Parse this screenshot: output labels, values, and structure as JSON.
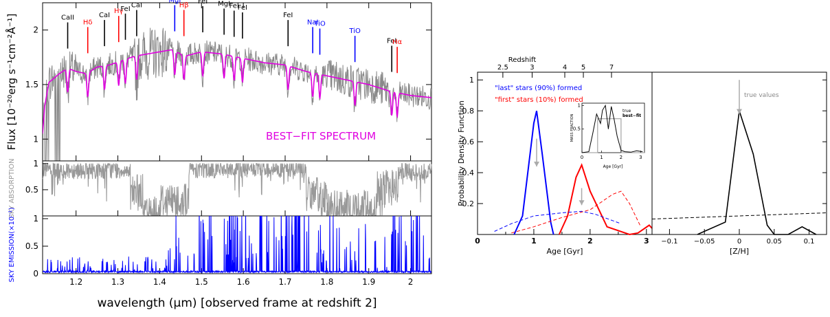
{
  "colors": {
    "spectrum": "#888888",
    "fit": "#e000e0",
    "sky_abs": "#999999",
    "sky_em": "#0000ff",
    "last": "#0000ff",
    "first": "#ff0000",
    "z": "#000000",
    "true_arrow": "#aaaaaa"
  },
  "chart_data": [
    {
      "type": "line",
      "panel": "spectrum",
      "xlabel": "wavelength (μm) [observed frame at redshift 2]",
      "ylabel": "Flux [10⁻²⁰erg s⁻¹cm⁻²Å⁻¹]",
      "xlim": [
        1.12,
        2.05
      ],
      "ylim": [
        0.8,
        2.25
      ],
      "x_ticks": [
        "1.2",
        "1.3",
        "1.4",
        "1.5",
        "1.6",
        "1.7",
        "1.8",
        "1.9",
        "2"
      ],
      "y_ticks": [
        "1",
        "1.5",
        "2"
      ],
      "annotation": "BEST−FIT SPECTRUM",
      "fit_knots": {
        "x": [
          1.12,
          1.125,
          1.135,
          1.145,
          1.16,
          1.18,
          1.2,
          1.225,
          1.25,
          1.28,
          1.31,
          1.34,
          1.37,
          1.4,
          1.43,
          1.46,
          1.5,
          1.55,
          1.6,
          1.65,
          1.7,
          1.75,
          1.8,
          1.85,
          1.9,
          1.95,
          2.0,
          2.05
        ],
        "y": [
          1.05,
          1.3,
          1.52,
          1.55,
          1.6,
          1.65,
          1.62,
          1.6,
          1.66,
          1.68,
          1.72,
          1.76,
          1.78,
          1.8,
          1.82,
          1.76,
          1.8,
          1.78,
          1.74,
          1.7,
          1.68,
          1.62,
          1.58,
          1.54,
          1.5,
          1.44,
          1.4,
          1.38
        ]
      },
      "absorption_lines": [
        {
          "name": "CaII",
          "x": 1.18,
          "color": "black"
        },
        {
          "name": "Hδ",
          "x": 1.228,
          "color": "red"
        },
        {
          "name": "CaI",
          "x": 1.268,
          "color": "black"
        },
        {
          "name": "Hγ",
          "x": 1.302,
          "color": "red"
        },
        {
          "name": "FeI",
          "x": 1.318,
          "color": "black"
        },
        {
          "name": "CaI",
          "x": 1.345,
          "color": "black"
        },
        {
          "name": "MgI",
          "x": 1.436,
          "color": "blue"
        },
        {
          "name": "Hβ",
          "x": 1.458,
          "color": "red"
        },
        {
          "name": "FeI",
          "x": 1.503,
          "color": "black"
        },
        {
          "name": "MgI",
          "x": 1.554,
          "color": "black"
        },
        {
          "name": "FeI",
          "x": 1.578,
          "color": "black"
        },
        {
          "name": "FeI",
          "x": 1.598,
          "color": "black"
        },
        {
          "name": "FeI",
          "x": 1.707,
          "color": "black"
        },
        {
          "name": "NaI",
          "x": 1.766,
          "color": "blue"
        },
        {
          "name": "TiO",
          "x": 1.783,
          "color": "blue"
        },
        {
          "name": "TiO",
          "x": 1.867,
          "color": "blue"
        },
        {
          "name": "FeI",
          "x": 1.955,
          "color": "black"
        },
        {
          "name": "Hα",
          "x": 1.968,
          "color": "red"
        }
      ]
    },
    {
      "type": "line",
      "panel": "sky-absorption",
      "ylabel": "SKY ABSORPTION",
      "xlim": [
        1.12,
        2.05
      ],
      "ylim": [
        0,
        1.05
      ],
      "y_ticks": [
        "0.5",
        "1"
      ],
      "bands": [
        {
          "from": 1.12,
          "to": 1.33,
          "level": 0.88
        },
        {
          "from": 1.33,
          "to": 1.36,
          "level": 0.45
        },
        {
          "from": 1.36,
          "to": 1.4,
          "level": 0.05
        },
        {
          "from": 1.4,
          "to": 1.47,
          "level": 0.3
        },
        {
          "from": 1.47,
          "to": 1.75,
          "level": 0.9
        },
        {
          "from": 1.75,
          "to": 1.8,
          "level": 0.4
        },
        {
          "from": 1.8,
          "to": 1.92,
          "level": 0.15
        },
        {
          "from": 1.92,
          "to": 1.97,
          "level": 0.55
        },
        {
          "from": 1.97,
          "to": 2.05,
          "level": 0.85
        }
      ]
    },
    {
      "type": "line",
      "panel": "sky-emission",
      "ylabel": "SKY EMISSION(×10⁻¹)",
      "xlim": [
        1.12,
        2.05
      ],
      "ylim": [
        0,
        1.05
      ],
      "y_ticks": [
        "0",
        "0.5",
        "1"
      ]
    },
    {
      "type": "line",
      "panel": "age-pdf",
      "xlabel": "Age [Gyr]",
      "ylabel": "Probability Density Function",
      "top_axis_label": "Redshift",
      "top_ticks": [
        {
          "label": "2.5",
          "age": 0.45
        },
        {
          "label": "3",
          "age": 0.97
        },
        {
          "label": "4",
          "age": 1.55
        },
        {
          "label": "5",
          "age": 1.88
        },
        {
          "label": "7",
          "age": 2.38
        }
      ],
      "xlim": [
        0,
        3.1
      ],
      "ylim": [
        0,
        1.05
      ],
      "x_ticks": [
        "0",
        "1",
        "2",
        "3"
      ],
      "y_ticks": [
        "0.2",
        "0.4",
        "0.6",
        "0.8",
        "1"
      ],
      "legend": [
        "\"last\" stars (90%) formed",
        "\"first\" stars (10%) formed"
      ],
      "series": [
        {
          "name": "\"last\" stars (90%) formed",
          "x": [
            0.65,
            0.8,
            1.0,
            1.05,
            1.15,
            1.3,
            1.35
          ],
          "y": [
            0,
            0.12,
            0.72,
            0.8,
            0.52,
            0.08,
            0
          ],
          "color": "blue",
          "style": "solid"
        },
        {
          "name": "\"first\" stars (10%) formed",
          "x": [
            1.45,
            1.6,
            1.75,
            1.85,
            2.0,
            2.3,
            2.7,
            2.85,
            3.05,
            3.1
          ],
          "y": [
            0,
            0.12,
            0.37,
            0.45,
            0.28,
            0.05,
            0,
            0.01,
            0.06,
            0.04
          ],
          "color": "red",
          "style": "solid"
        },
        {
          "x": [
            0.3,
            0.6,
            1.0,
            1.5,
            1.85,
            2.1,
            2.4,
            2.55
          ],
          "y": [
            0.02,
            0.07,
            0.12,
            0.14,
            0.15,
            0.13,
            0.09,
            0.07
          ],
          "color": "blue",
          "style": "dashed"
        },
        {
          "x": [
            0.6,
            1.0,
            1.5,
            2.0,
            2.4,
            2.55,
            2.7,
            2.9
          ],
          "y": [
            0.01,
            0.05,
            0.11,
            0.16,
            0.26,
            0.28,
            0.2,
            0.05
          ],
          "color": "red",
          "style": "dashed"
        }
      ],
      "true_arrows": [
        {
          "x": 1.05,
          "y_from": 0.62,
          "y_to": 0.44
        },
        {
          "x": 1.85,
          "y_from": 0.3,
          "y_to": 0.19
        }
      ],
      "inset": {
        "xlabel": "Age [Gyr]",
        "ylabel": "MASS FRACTION",
        "xlim": [
          0,
          3.2
        ],
        "ylim": [
          0,
          1.05
        ],
        "x_ticks": [
          "0",
          "1",
          "2",
          "3"
        ],
        "y_ticks": [
          "0.5",
          "1"
        ],
        "legend": [
          "true",
          "best−fit"
        ],
        "true_box": {
          "from": 0.8,
          "to": 2.0,
          "level": 0.72
        },
        "best_fit": {
          "x": [
            0,
            0.35,
            0.55,
            0.75,
            0.95,
            1.05,
            1.2,
            1.35,
            1.5,
            1.65,
            1.8,
            2.0,
            2.2,
            2.5,
            2.8,
            3.1
          ],
          "y": [
            0,
            0.02,
            0.4,
            0.82,
            0.62,
            0.9,
            1.0,
            0.5,
            0.98,
            0.7,
            0.35,
            0.05,
            0.02,
            0.01,
            0.04,
            0.02
          ]
        }
      }
    },
    {
      "type": "line",
      "panel": "metallicity-pdf",
      "xlabel": "[Z/H]",
      "annotation": "true values",
      "xlim": [
        -0.125,
        0.125
      ],
      "ylim": [
        0,
        1.05
      ],
      "x_ticks": [
        "−0.1",
        "−0.05",
        "0",
        "0.05",
        "0.1"
      ],
      "series": [
        {
          "x": [
            -0.06,
            -0.02,
            0.0,
            0.02,
            0.04,
            0.05,
            0.07,
            0.09,
            0.11
          ],
          "y": [
            0,
            0.08,
            0.8,
            0.52,
            0.06,
            0,
            0,
            0.05,
            0
          ],
          "color": "black",
          "style": "solid"
        },
        {
          "x": [
            -0.125,
            0.0,
            0.125
          ],
          "y": [
            0.1,
            0.12,
            0.14
          ],
          "color": "black",
          "style": "dashed"
        }
      ],
      "true_arrows": [
        {
          "x": 0.0,
          "y_from": 1.0,
          "y_to": 0.78
        }
      ]
    }
  ]
}
